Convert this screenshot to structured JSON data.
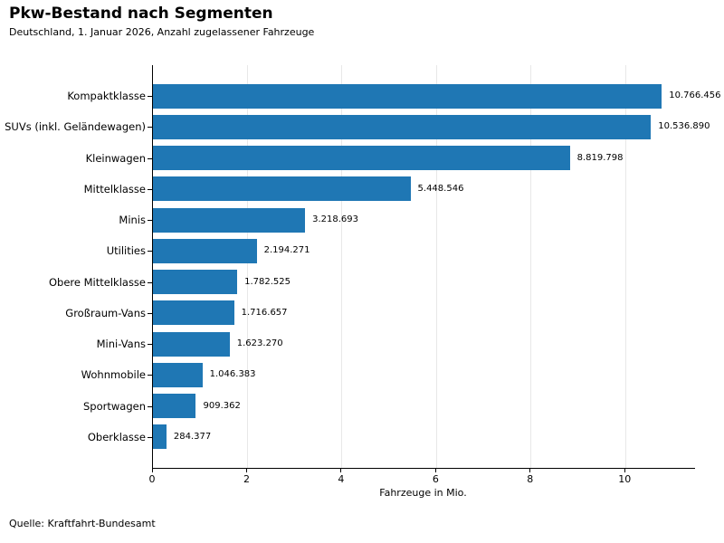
{
  "chart_data": {
    "type": "bar",
    "orientation": "horizontal",
    "title": "Pkw-Bestand nach Segmenten",
    "subtitle": "Deutschland, 1. Januar 2026, Anzahl zugelassener Fahrzeuge",
    "xlabel": "Fahrzeuge in Mio.",
    "source": "Quelle: Kraftfahrt-Bundesamt",
    "categories": [
      "Kompaktklasse",
      "SUVs (inkl. Geländewagen)",
      "Kleinwagen",
      "Mittelklasse",
      "Minis",
      "Utilities",
      "Obere Mittelklasse",
      "Großraum-Vans",
      "Mini-Vans",
      "Wohnmobile",
      "Sportwagen",
      "Oberklasse"
    ],
    "values": [
      10766456,
      10536890,
      8819798,
      5448546,
      3218693,
      2194271,
      1782525,
      1716657,
      1623270,
      1046383,
      909362,
      284377
    ],
    "value_labels": [
      "10.766.456",
      "10.536.890",
      "8.819.798",
      "5.448.546",
      "3.218.693",
      "2.194.271",
      "1.782.525",
      "1.716.657",
      "1.623.270",
      "1.046.383",
      "909.362",
      "284.377"
    ],
    "x_ticks": [
      0,
      2,
      4,
      6,
      8,
      10
    ],
    "xlim": [
      0,
      11.47
    ],
    "unit_scale": 1000000,
    "bar_color": "#1f77b4",
    "grid": true,
    "gridline_color": "#e8e8e8",
    "legend": null
  }
}
